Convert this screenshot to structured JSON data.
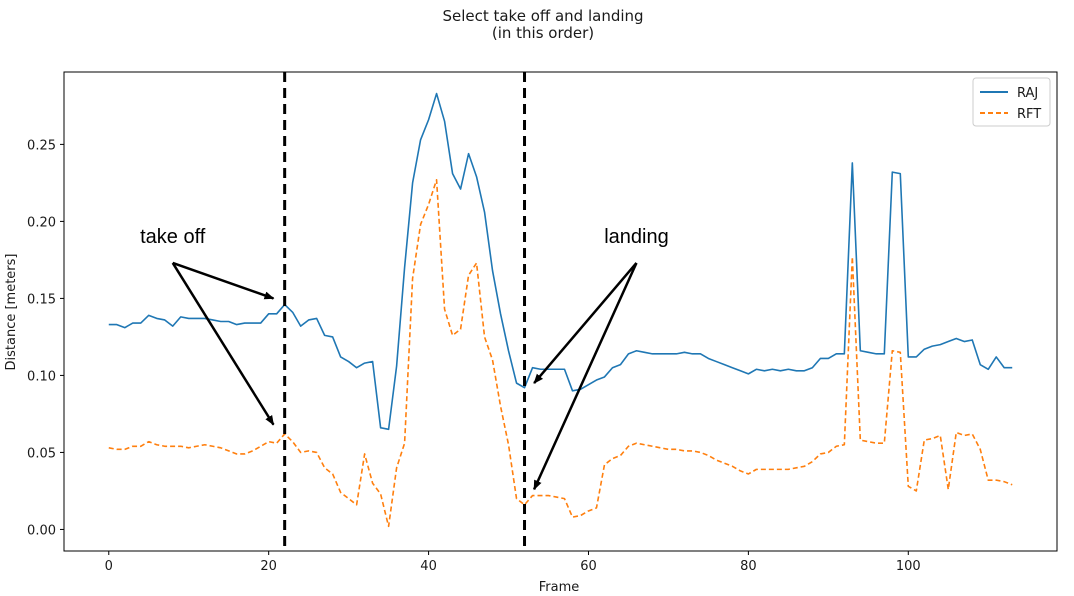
{
  "chart_data": {
    "type": "line",
    "title": "Select take off and landing",
    "subtitle": "(in this order)",
    "xlabel": "Frame",
    "ylabel": "Distance [meters]",
    "xlim": [
      -5.6,
      118.6
    ],
    "ylim": [
      -0.014,
      0.297
    ],
    "xticks": [
      0,
      20,
      40,
      60,
      80,
      100
    ],
    "yticks": [
      0.0,
      0.05,
      0.1,
      0.15,
      0.2,
      0.25
    ],
    "ytick_labels": [
      "0.00",
      "0.05",
      "0.10",
      "0.15",
      "0.20",
      "0.25"
    ],
    "grid": false,
    "legend": "top-right",
    "series": [
      {
        "name": "RAJ",
        "color": "#1f77b4",
        "style": "solid",
        "values": [
          0.133,
          0.133,
          0.131,
          0.134,
          0.134,
          0.139,
          0.137,
          0.136,
          0.132,
          0.138,
          0.137,
          0.137,
          0.137,
          0.136,
          0.135,
          0.135,
          0.133,
          0.134,
          0.134,
          0.134,
          0.14,
          0.14,
          0.146,
          0.141,
          0.132,
          0.136,
          0.137,
          0.126,
          0.125,
          0.112,
          0.109,
          0.105,
          0.108,
          0.109,
          0.066,
          0.065,
          0.106,
          0.17,
          0.225,
          0.253,
          0.266,
          0.283,
          0.265,
          0.231,
          0.221,
          0.244,
          0.229,
          0.206,
          0.168,
          0.14,
          0.116,
          0.095,
          0.092,
          0.105,
          0.104,
          0.104,
          0.104,
          0.104,
          0.09,
          0.091,
          0.094,
          0.097,
          0.099,
          0.105,
          0.107,
          0.114,
          0.116,
          0.115,
          0.114,
          0.114,
          0.114,
          0.114,
          0.115,
          0.114,
          0.114,
          0.111,
          0.109,
          0.107,
          0.105,
          0.103,
          0.101,
          0.104,
          0.103,
          0.104,
          0.103,
          0.104,
          0.103,
          0.103,
          0.105,
          0.111,
          0.111,
          0.114,
          0.114,
          0.238,
          0.116,
          0.115,
          0.114,
          0.114,
          0.232,
          0.231,
          0.112,
          0.112,
          0.117,
          0.119,
          0.12,
          0.122,
          0.124,
          0.122,
          0.123,
          0.107,
          0.104,
          0.112,
          0.105,
          0.105
        ]
      },
      {
        "name": "RFT",
        "color": "#ff7f0e",
        "style": "dashed",
        "values": [
          0.053,
          0.052,
          0.052,
          0.054,
          0.054,
          0.057,
          0.055,
          0.054,
          0.054,
          0.054,
          0.053,
          0.054,
          0.055,
          0.054,
          0.053,
          0.051,
          0.049,
          0.049,
          0.051,
          0.054,
          0.057,
          0.056,
          0.062,
          0.057,
          0.05,
          0.051,
          0.05,
          0.04,
          0.036,
          0.024,
          0.02,
          0.016,
          0.049,
          0.03,
          0.023,
          0.002,
          0.04,
          0.056,
          0.163,
          0.198,
          0.211,
          0.227,
          0.143,
          0.126,
          0.13,
          0.165,
          0.173,
          0.125,
          0.11,
          0.08,
          0.055,
          0.02,
          0.016,
          0.022,
          0.022,
          0.022,
          0.021,
          0.02,
          0.008,
          0.009,
          0.012,
          0.014,
          0.042,
          0.046,
          0.048,
          0.054,
          0.056,
          0.055,
          0.054,
          0.053,
          0.052,
          0.052,
          0.051,
          0.051,
          0.05,
          0.048,
          0.045,
          0.043,
          0.041,
          0.038,
          0.036,
          0.039,
          0.039,
          0.039,
          0.039,
          0.039,
          0.04,
          0.041,
          0.044,
          0.049,
          0.05,
          0.054,
          0.055,
          0.177,
          0.058,
          0.057,
          0.056,
          0.056,
          0.116,
          0.115,
          0.028,
          0.025,
          0.058,
          0.059,
          0.061,
          0.026,
          0.063,
          0.061,
          0.062,
          0.052,
          0.032,
          0.032,
          0.031,
          0.029
        ]
      }
    ],
    "vlines": [
      {
        "x": 22,
        "color": "#000000",
        "style": "dashed"
      },
      {
        "x": 52,
        "color": "#000000",
        "style": "dashed"
      }
    ],
    "annotations": [
      {
        "text": "take off",
        "text_x": 8,
        "text_y": 0.186,
        "targets": [
          [
            20.6,
            0.15
          ],
          [
            20.6,
            0.068
          ]
        ]
      },
      {
        "text": "landing",
        "text_x": 66,
        "text_y": 0.186,
        "targets": [
          [
            53.2,
            0.095
          ],
          [
            53.2,
            0.026
          ]
        ]
      }
    ]
  }
}
